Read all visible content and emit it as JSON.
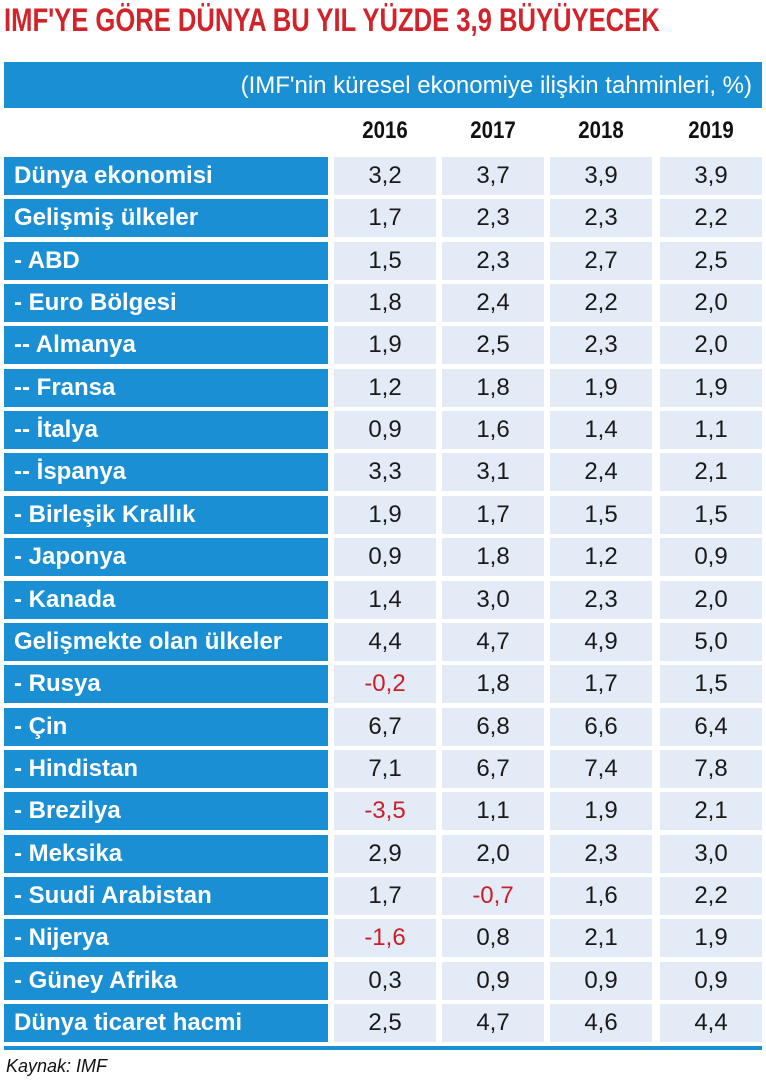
{
  "header": {
    "title": "IMF'YE GÖRE DÜNYA BU YIL YÜZDE 3,9 BÜYÜYECEK",
    "subtitle": "(IMF'nin küresel ekonomiye ilişkin tahminleri, %)"
  },
  "table": {
    "columns": [
      "2016",
      "2017",
      "2018",
      "2019"
    ],
    "rows": [
      {
        "label": "Dünya ekonomisi",
        "values": [
          "3,2",
          "3,7",
          "3,9",
          "3,9"
        ]
      },
      {
        "label": "Gelişmiş ülkeler",
        "values": [
          "1,7",
          "2,3",
          "2,3",
          "2,2"
        ]
      },
      {
        "label": "- ABD",
        "values": [
          "1,5",
          "2,3",
          "2,7",
          "2,5"
        ]
      },
      {
        "label": "- Euro Bölgesi",
        "values": [
          "1,8",
          "2,4",
          "2,2",
          "2,0"
        ]
      },
      {
        "label": "-- Almanya",
        "values": [
          "1,9",
          "2,5",
          "2,3",
          "2,0"
        ]
      },
      {
        "label": "-- Fransa",
        "values": [
          "1,2",
          "1,8",
          "1,9",
          "1,9"
        ]
      },
      {
        "label": "-- İtalya",
        "values": [
          "0,9",
          "1,6",
          "1,4",
          "1,1"
        ]
      },
      {
        "label": "-- İspanya",
        "values": [
          "3,3",
          "3,1",
          "2,4",
          "2,1"
        ]
      },
      {
        "label": "- Birleşik Krallık",
        "values": [
          "1,9",
          "1,7",
          "1,5",
          "1,5"
        ]
      },
      {
        "label": "- Japonya",
        "values": [
          "0,9",
          "1,8",
          "1,2",
          "0,9"
        ]
      },
      {
        "label": "- Kanada",
        "values": [
          "1,4",
          "3,0",
          "2,3",
          "2,0"
        ]
      },
      {
        "label": "Gelişmekte olan ülkeler",
        "values": [
          "4,4",
          "4,7",
          "4,9",
          "5,0"
        ]
      },
      {
        "label": "- Rusya",
        "values": [
          "-0,2",
          "1,8",
          "1,7",
          "1,5"
        ]
      },
      {
        "label": "- Çin",
        "values": [
          "6,7",
          "6,8",
          "6,6",
          "6,4"
        ]
      },
      {
        "label": "- Hindistan",
        "values": [
          "7,1",
          "6,7",
          "7,4",
          "7,8"
        ]
      },
      {
        "label": "- Brezilya",
        "values": [
          "-3,5",
          "1,1",
          "1,9",
          "2,1"
        ]
      },
      {
        "label": "- Meksika",
        "values": [
          "2,9",
          "2,0",
          "2,3",
          "3,0"
        ]
      },
      {
        "label": "- Suudi Arabistan",
        "values": [
          "1,7",
          "-0,7",
          "1,6",
          "2,2"
        ]
      },
      {
        "label": "- Nijerya",
        "values": [
          "-1,6",
          "0,8",
          "2,1",
          "1,9"
        ]
      },
      {
        "label": "- Güney Afrika",
        "values": [
          "0,3",
          "0,9",
          "0,9",
          "0,9"
        ]
      },
      {
        "label": "Dünya ticaret hacmi",
        "values": [
          "2,5",
          "4,7",
          "4,6",
          "4,4"
        ]
      }
    ]
  },
  "footer": {
    "source": "Kaynak: IMF"
  }
}
